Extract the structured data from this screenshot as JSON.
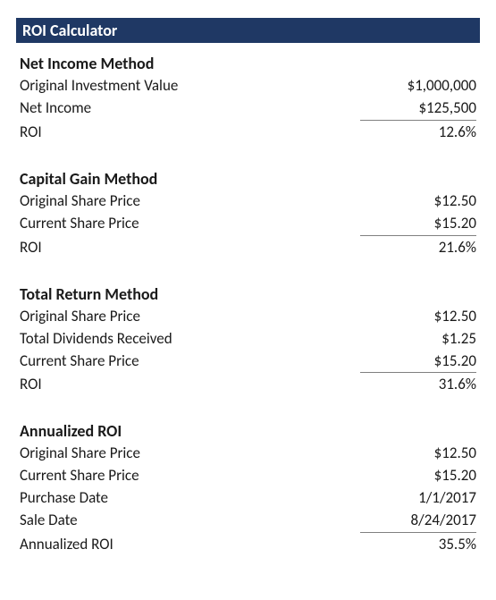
{
  "title": "ROI Calculator",
  "colors": {
    "title_bg": "#1f3864",
    "title_text": "#ffffff",
    "text": "#1a1a1a",
    "underline": "#808080",
    "background": "#ffffff"
  },
  "typography": {
    "font_family": "Calibri",
    "title_fontsize": 18,
    "heading_fontsize": 18,
    "body_fontsize": 17
  },
  "sections": {
    "net_income": {
      "heading": "Net Income Method",
      "rows": {
        "original_investment": {
          "label": "Original Investment Value",
          "value": "$1,000,000"
        },
        "net_income": {
          "label": "Net Income",
          "value": "$125,500"
        },
        "roi": {
          "label": "ROI",
          "value": "12.6%"
        }
      }
    },
    "capital_gain": {
      "heading": "Capital Gain Method",
      "rows": {
        "original_share": {
          "label": "Original Share Price",
          "value": "$12.50"
        },
        "current_share": {
          "label": "Current Share Price",
          "value": "$15.20"
        },
        "roi": {
          "label": "ROI",
          "value": "21.6%"
        }
      }
    },
    "total_return": {
      "heading": "Total Return Method",
      "rows": {
        "original_share": {
          "label": "Original Share Price",
          "value": "$12.50"
        },
        "dividends": {
          "label": "Total Dividends Received",
          "value": "$1.25"
        },
        "current_share": {
          "label": "Current Share Price",
          "value": "$15.20"
        },
        "roi": {
          "label": "ROI",
          "value": "31.6%"
        }
      }
    },
    "annualized": {
      "heading": "Annualized ROI",
      "rows": {
        "original_share": {
          "label": "Original Share Price",
          "value": "$12.50"
        },
        "current_share": {
          "label": "Current Share Price",
          "value": "$15.20"
        },
        "purchase_date": {
          "label": "Purchase Date",
          "value": "1/1/2017"
        },
        "sale_date": {
          "label": "Sale Date",
          "value": "8/24/2017"
        },
        "roi": {
          "label": "Annualized ROI",
          "value": "35.5%"
        }
      }
    }
  }
}
